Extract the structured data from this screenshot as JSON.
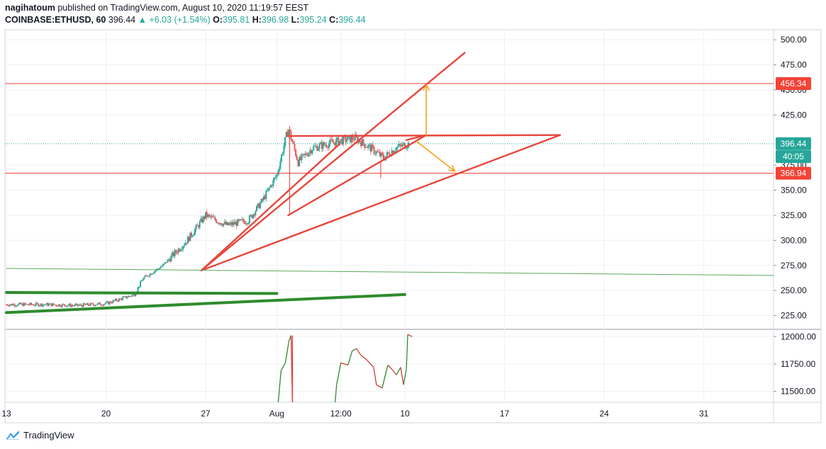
{
  "header": {
    "author": "nagihatoum",
    "published_text": "published on TradingView.com, August 10, 2020 11:19:57 EEST",
    "symbol": "COINBASE:ETHUSD, 60",
    "last": "396.44",
    "change": "+6.03 (+1.54%)",
    "open_label": "O:",
    "open": "395.81",
    "high_label": "H:",
    "high": "396.98",
    "low_label": "L:",
    "low": "395.24",
    "close_label": "C:",
    "close": "396.44"
  },
  "footer": {
    "brand": "TradingView"
  },
  "colors": {
    "up": "#26a69a",
    "down": "#ef5350",
    "grid": "#eef0f3",
    "trend": "#e8453c",
    "arrow": "#f7a21b",
    "green": "#2e8b2e",
    "thin_green": "#5ca95c",
    "price_line": "#26a69a"
  },
  "chart_data": [
    {
      "type": "candlestick",
      "title": "",
      "ylim": [
        212,
        510
      ],
      "y_ticks": [
        "500.00",
        "475.00",
        "450.00",
        "425.00",
        "375.00",
        "350.00",
        "325.00",
        "300.00",
        "275.00",
        "250.00",
        "225.00"
      ],
      "x_ticks": [
        "13",
        "20",
        "27",
        "Aug",
        "12:00",
        "10",
        "17",
        "24",
        "31"
      ],
      "x_tick_days": [
        13,
        20,
        27,
        32,
        36.5,
        41,
        48,
        55,
        62
      ],
      "xlim_days": [
        12.9,
        66.9
      ],
      "price_series": [
        {
          "day": 13,
          "price": 236
        },
        {
          "day": 16,
          "price": 236
        },
        {
          "day": 18,
          "price": 235
        },
        {
          "day": 20,
          "price": 237
        },
        {
          "day": 22,
          "price": 246
        },
        {
          "day": 22.6,
          "price": 262
        },
        {
          "day": 24,
          "price": 275
        },
        {
          "day": 25.7,
          "price": 300
        },
        {
          "day": 27,
          "price": 325
        },
        {
          "day": 28.5,
          "price": 315
        },
        {
          "day": 30,
          "price": 320
        },
        {
          "day": 31,
          "price": 340
        },
        {
          "day": 32,
          "price": 365
        },
        {
          "day": 32.8,
          "price": 412
        },
        {
          "day": 33.5,
          "price": 378
        },
        {
          "day": 34.5,
          "price": 392
        },
        {
          "day": 36,
          "price": 398
        },
        {
          "day": 37.5,
          "price": 402
        },
        {
          "day": 38.8,
          "price": 390
        },
        {
          "day": 39.5,
          "price": 382
        },
        {
          "day": 40.3,
          "price": 392
        },
        {
          "day": 41.3,
          "price": 396.44
        }
      ],
      "price_labels": [
        {
          "text": "456.34",
          "value": 456.34,
          "color": "#f44336"
        },
        {
          "text": "396.44",
          "value": 396.44,
          "color": "#26a69a"
        },
        {
          "text": "40:05",
          "value": 383.5,
          "color": "#26a69a"
        },
        {
          "text": "366.94",
          "value": 366.94,
          "color": "#f44336"
        }
      ],
      "horizontal_lines": [
        456.34,
        366.94
      ],
      "drawings": [
        {
          "name": "trend-line-upper-channel",
          "color": "#e8453c",
          "points": [
            [
              26.7,
              270
            ],
            [
              36.4,
              396
            ]
          ]
        },
        {
          "name": "trend-line-steep",
          "color": "#e8453c",
          "points": [
            [
              26.7,
              270
            ],
            [
              45.2,
              487
            ]
          ]
        },
        {
          "name": "trend-line-wedge-top",
          "color": "#e8453c",
          "points": [
            [
              32.7,
              404
            ],
            [
              51.9,
              405
            ]
          ]
        },
        {
          "name": "trend-line-wedge-bottom",
          "color": "#e8453c",
          "points": [
            [
              26.7,
              270
            ],
            [
              51.9,
              405
            ]
          ]
        },
        {
          "name": "trend-line-mid",
          "color": "#e8453c",
          "points": [
            [
              32.8,
              325
            ],
            [
              42.5,
              405
            ]
          ]
        },
        {
          "name": "trend-line-short",
          "color": "#e8453c",
          "points": [
            [
              41.1,
              400
            ],
            [
              42.5,
              405
            ]
          ]
        },
        {
          "name": "arrow-up-target",
          "color": "#f7a21b",
          "points": [
            [
              42.5,
              405
            ],
            [
              42.5,
              455
            ]
          ]
        },
        {
          "name": "arrow-down-target",
          "color": "#f7a21b",
          "points": [
            [
              41.8,
              399
            ],
            [
              44.5,
              369
            ]
          ]
        },
        {
          "name": "support-line-flat",
          "color": "#2e8b2e",
          "points": [
            [
              13,
              248
            ],
            [
              32.0,
              247
            ]
          ]
        },
        {
          "name": "support-line-rising",
          "color": "#2e8b2e",
          "points": [
            [
              13,
              228
            ],
            [
              41.0,
              246
            ]
          ]
        },
        {
          "name": "support-line-thin",
          "color": "#5ca95c",
          "points": [
            [
              13,
              272
            ],
            [
              66.9,
              265
            ]
          ]
        }
      ]
    },
    {
      "type": "line",
      "title": "",
      "ylim": [
        11400,
        12060
      ],
      "y_ticks": [
        "12000.00",
        "11750.00",
        "11500.00"
      ],
      "series": [
        {
          "name": "",
          "points": [
            [
              32.1,
              11400
            ],
            [
              32.3,
              11690
            ],
            [
              32.6,
              11760
            ],
            [
              32.85,
              11960
            ],
            [
              33.0,
              12010
            ],
            [
              33.1,
              11400
            ],
            [
              36.1,
              11400
            ],
            [
              36.2,
              11560
            ],
            [
              36.5,
              11760
            ],
            [
              37.0,
              11740
            ],
            [
              37.3,
              11870
            ],
            [
              37.6,
              11890
            ],
            [
              37.9,
              11830
            ],
            [
              38.3,
              11790
            ],
            [
              38.8,
              11720
            ],
            [
              39.0,
              11560
            ],
            [
              39.4,
              11530
            ],
            [
              39.8,
              11740
            ],
            [
              40.1,
              11700
            ],
            [
              40.4,
              11650
            ],
            [
              40.7,
              11720
            ],
            [
              40.9,
              11560
            ],
            [
              41.1,
              11700
            ],
            [
              41.2,
              12020
            ],
            [
              41.5,
              12000
            ]
          ]
        }
      ]
    }
  ]
}
